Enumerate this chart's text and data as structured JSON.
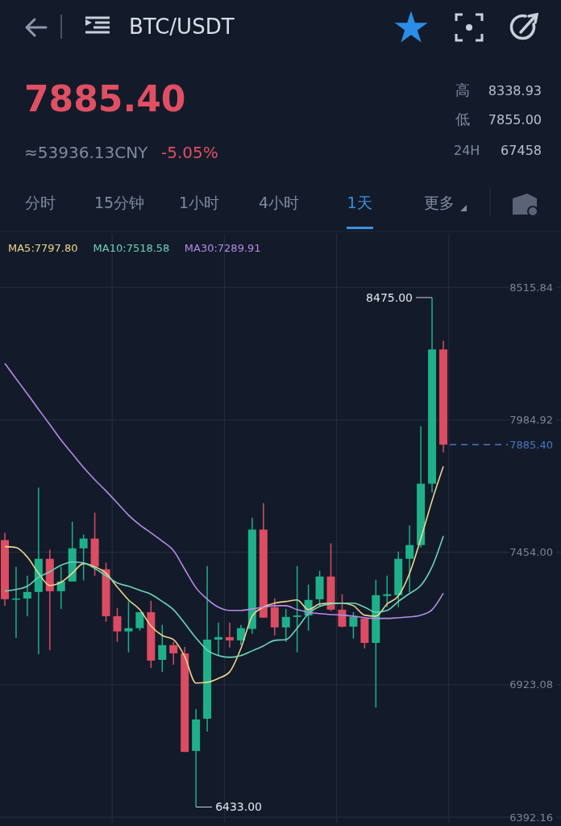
{
  "chart_data": {
    "type": "candlestick",
    "title": "BTC/USDT",
    "categories": [
      null,
      null,
      null,
      null,
      null,
      null,
      null,
      null,
      null,
      null,
      null,
      null,
      null,
      null,
      null,
      null,
      null,
      null,
      null,
      null,
      null,
      null,
      null,
      null,
      null,
      null,
      null,
      null,
      null,
      null,
      null,
      null,
      null,
      null,
      null,
      null,
      null,
      null,
      null,
      null
    ],
    "ohlc": [
      [
        7503,
        7532,
        7240,
        7266
      ],
      [
        7266,
        7396,
        7111,
        7269
      ],
      [
        7269,
        7360,
        7198,
        7295
      ],
      [
        7295,
        7713,
        7046,
        7428
      ],
      [
        7428,
        7464,
        7062,
        7298
      ],
      [
        7298,
        7396,
        7227,
        7337
      ],
      [
        7337,
        7577,
        7337,
        7470
      ],
      [
        7470,
        7525,
        7341,
        7509
      ],
      [
        7509,
        7613,
        7360,
        7396
      ],
      [
        7386,
        7412,
        7176,
        7198
      ],
      [
        7198,
        7231,
        7095,
        7137
      ],
      [
        7137,
        7257,
        7053,
        7150
      ],
      [
        7150,
        7214,
        7140,
        7214
      ],
      [
        7214,
        7260,
        6991,
        7020
      ],
      [
        7023,
        7163,
        6975,
        7082
      ],
      [
        7082,
        7095,
        7004,
        7049
      ],
      [
        7049,
        7075,
        6654,
        6654
      ],
      [
        6658,
        6826,
        6433,
        6784
      ],
      [
        6787,
        7399,
        6735,
        7104
      ],
      [
        7104,
        7172,
        7040,
        7114
      ],
      [
        7114,
        7172,
        7072,
        7101
      ],
      [
        7101,
        7163,
        7082,
        7150
      ],
      [
        7147,
        7593,
        7127,
        7545
      ],
      [
        7545,
        7651,
        7192,
        7192
      ],
      [
        7234,
        7269,
        7121,
        7153
      ],
      [
        7153,
        7227,
        7095,
        7195
      ],
      [
        7195,
        7399,
        7053,
        7201
      ],
      [
        7201,
        7325,
        7140,
        7263
      ],
      [
        7266,
        7380,
        7234,
        7357
      ],
      [
        7357,
        7490,
        7218,
        7224
      ],
      [
        7224,
        7286,
        7153,
        7156
      ],
      [
        7156,
        7214,
        7108,
        7195
      ],
      [
        7189,
        7189,
        7069,
        7091
      ],
      [
        7091,
        7344,
        6832,
        7282
      ],
      [
        7279,
        7360,
        7234,
        7286
      ],
      [
        7282,
        7457,
        7234,
        7428
      ],
      [
        7428,
        7561,
        7295,
        7483
      ],
      [
        7483,
        7959,
        7473,
        7729
      ],
      [
        7729,
        8475,
        7694,
        8267
      ],
      [
        8267,
        8302,
        7855,
        7885.4
      ]
    ],
    "colors": [
      "#dc4c62",
      "#1fb08a",
      "#1fb08a",
      "#1fb08a",
      "#dc4c62",
      "#1fb08a",
      "#1fb08a",
      "#1fb08a",
      "#dc4c62",
      "#dc4c62",
      "#dc4c62",
      "#1fb08a",
      "#1fb08a",
      "#dc4c62",
      "#1fb08a",
      "#dc4c62",
      "#dc4c62",
      "#1fb08a",
      "#1fb08a",
      "#1fb08a",
      "#dc4c62",
      "#1fb08a",
      "#1fb08a",
      "#dc4c62",
      "#dc4c62",
      "#1fb08a",
      "#1fb08a",
      "#1fb08a",
      "#1fb08a",
      "#dc4c62",
      "#dc4c62",
      "#1fb08a",
      "#dc4c62",
      "#1fb08a",
      "#1fb08a",
      "#1fb08a",
      "#1fb08a",
      "#1fb08a",
      "#1fb08a",
      "#dc4c62"
    ],
    "series": [
      {
        "type": "line",
        "name": "MA5:7797.80",
        "color": "#f0d68b",
        "values": [
          7477,
          7473,
          7435,
          7370,
          7321,
          7334,
          7370,
          7409,
          7396,
          7370,
          7315,
          7263,
          7224,
          7159,
          7121,
          7104,
          7036,
          6930,
          6933,
          6949,
          6975,
          7069,
          7198,
          7234,
          7250,
          7257,
          7263,
          7224,
          7247,
          7250,
          7250,
          7240,
          7202,
          7198,
          7247,
          7279,
          7370,
          7509,
          7661,
          7798
        ]
      },
      {
        "type": "line",
        "name": "MA10:7518.58",
        "color": "#6dd3b8",
        "values": [
          7299,
          7305,
          7318,
          7354,
          7376,
          7402,
          7415,
          7412,
          7389,
          7360,
          7331,
          7318,
          7302,
          7286,
          7257,
          7224,
          7169,
          7111,
          7062,
          7040,
          7033,
          7040,
          7059,
          7079,
          7101,
          7104,
          7150,
          7208,
          7237,
          7247,
          7250,
          7250,
          7234,
          7214,
          7221,
          7257,
          7289,
          7321,
          7396,
          7519
        ]
      },
      {
        "type": "line",
        "name": "MA30:7289.91",
        "color": "#b78be6",
        "values": [
          8211,
          8150,
          8089,
          8027,
          7966,
          7904,
          7849,
          7794,
          7745,
          7700,
          7652,
          7603,
          7564,
          7532,
          7499,
          7461,
          7386,
          7312,
          7266,
          7234,
          7221,
          7221,
          7227,
          7234,
          7240,
          7240,
          7224,
          7214,
          7208,
          7205,
          7202,
          7198,
          7192,
          7189,
          7189,
          7192,
          7195,
          7202,
          7224,
          7290
        ]
      }
    ],
    "ylim": [
      6370,
      8730
    ],
    "yticks": [
      {
        "value": 6392.16,
        "label": "6392.16"
      },
      {
        "value": 6923.08,
        "label": "6923.08"
      },
      {
        "value": 7454,
        "label": "7454.00"
      },
      {
        "value": 7984.92,
        "label": "7984.92"
      },
      {
        "value": 8515.84,
        "label": "8515.84"
      }
    ],
    "grid": true,
    "legend": "top",
    "ref_lines": [
      {
        "axis": "y",
        "value": 7885.4,
        "label": "7885.40",
        "color": "#4a78c0",
        "line_style": "dashed"
      }
    ],
    "annotations": [
      "7885.40",
      "≈53936.13CNY",
      "-5.05%",
      "高",
      "8338.93",
      "低",
      "7855.00",
      "24H",
      "67458",
      "分时",
      "15分钟",
      "1小时",
      "4小时",
      "1天",
      "更多",
      "8475.00",
      "6433.00"
    ]
  }
}
